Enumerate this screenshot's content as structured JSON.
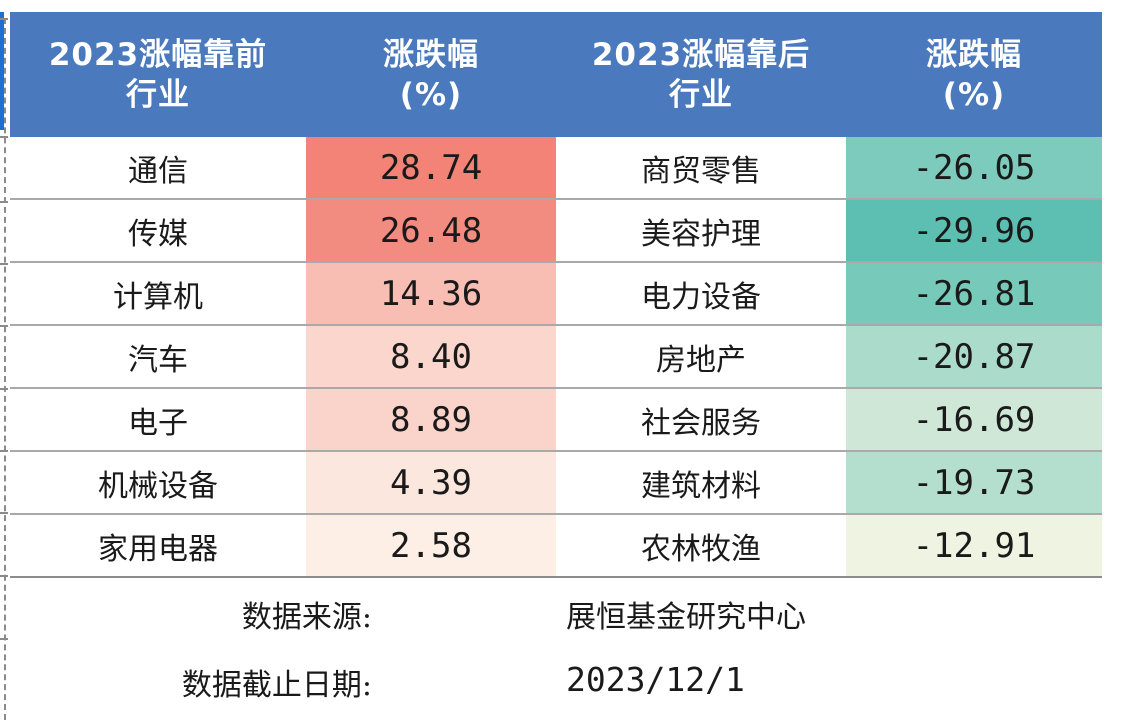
{
  "chart_data": {
    "type": "table",
    "headers": {
      "top_industry": [
        "2023涨幅靠前",
        "行业"
      ],
      "top_change": [
        "涨跌幅",
        "(%)"
      ],
      "bottom_industry": [
        "2023涨幅靠后",
        "行业"
      ],
      "bottom_change": [
        "涨跌幅",
        "(%)"
      ]
    },
    "rows": [
      {
        "top_industry": "通信",
        "top_change": "28.74",
        "bottom_industry": "商贸零售",
        "bottom_change": "-26.05"
      },
      {
        "top_industry": "传媒",
        "top_change": "26.48",
        "bottom_industry": "美容护理",
        "bottom_change": "-29.96"
      },
      {
        "top_industry": "计算机",
        "top_change": "14.36",
        "bottom_industry": "电力设备",
        "bottom_change": "-26.81"
      },
      {
        "top_industry": "汽车",
        "top_change": "8.40",
        "bottom_industry": "房地产",
        "bottom_change": "-20.87"
      },
      {
        "top_industry": "电子",
        "top_change": "8.89",
        "bottom_industry": "社会服务",
        "bottom_change": "-16.69"
      },
      {
        "top_industry": "机械设备",
        "top_change": "4.39",
        "bottom_industry": "建筑材料",
        "bottom_change": "-19.73"
      },
      {
        "top_industry": "家用电器",
        "top_change": "2.58",
        "bottom_industry": "农林牧渔",
        "bottom_change": "-12.91"
      }
    ],
    "heat_colors": {
      "positive_low": "#fdeee6",
      "positive_high": "#f28376",
      "negative_low": "#eef3e2",
      "negative_high": "#5cbfb1"
    }
  },
  "colors": {
    "header_bg": "#4a79bd",
    "header_text": "#ffffff"
  },
  "footer": {
    "source_label": "数据来源:",
    "source_value": "展恒基金研究中心",
    "date_label": "数据截止日期:",
    "date_value": "2023/12/1"
  }
}
